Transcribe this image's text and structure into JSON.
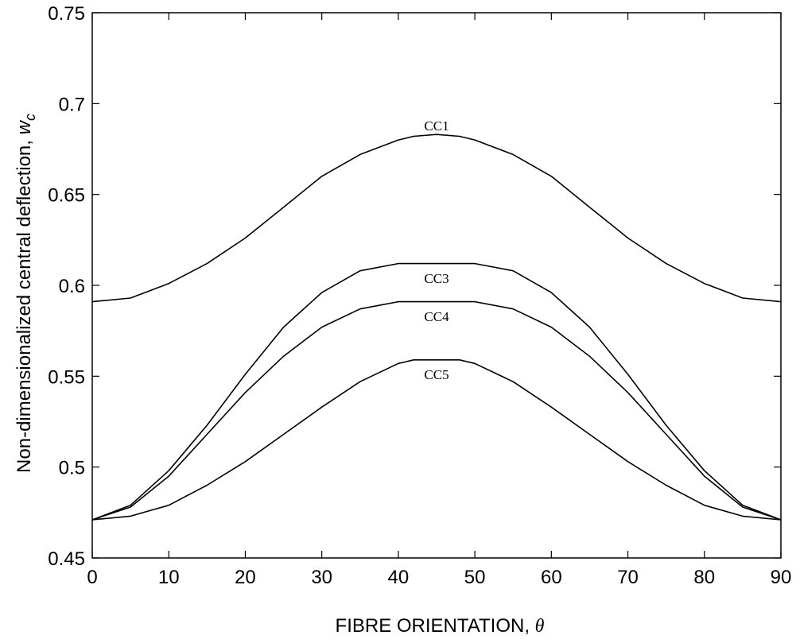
{
  "chart_data": {
    "type": "line",
    "xlabel": "FIBRE ORIENTATION, ",
    "xlabel_symbol": "θ",
    "ylabel": "Non-dimensionalized central deflection, ",
    "ylabel_symbol": "w",
    "ylabel_subscript": "c",
    "xlim": [
      0,
      90
    ],
    "ylim": [
      0.45,
      0.75
    ],
    "xticks": [
      0,
      10,
      20,
      30,
      40,
      50,
      60,
      70,
      80,
      90
    ],
    "xtick_labels": [
      "0",
      "10",
      "20",
      "30",
      "40",
      "50",
      "60",
      "70",
      "80",
      "90"
    ],
    "yticks": [
      0.45,
      0.5,
      0.55,
      0.6,
      0.65,
      0.7,
      0.75
    ],
    "ytick_labels": [
      "0.45",
      "0.5",
      "0.55",
      "0.6",
      "0.65",
      "0.7",
      "0.75"
    ],
    "grid": false,
    "x": [
      0,
      5,
      10,
      15,
      20,
      25,
      30,
      35,
      40,
      42,
      45,
      48,
      50,
      55,
      60,
      65,
      70,
      75,
      80,
      85,
      90
    ],
    "series": [
      {
        "name": "CC1",
        "label_at": [
          45,
          0.688
        ],
        "values": [
          0.591,
          0.593,
          0.601,
          0.612,
          0.626,
          0.643,
          0.66,
          0.672,
          0.68,
          0.682,
          0.683,
          0.682,
          0.68,
          0.672,
          0.66,
          0.643,
          0.626,
          0.612,
          0.601,
          0.593,
          0.591
        ]
      },
      {
        "name": "CC3",
        "label_at": [
          45,
          0.604
        ],
        "values": [
          0.471,
          0.479,
          0.498,
          0.523,
          0.551,
          0.577,
          0.596,
          0.608,
          0.612,
          0.612,
          0.612,
          0.612,
          0.612,
          0.608,
          0.596,
          0.577,
          0.551,
          0.523,
          0.498,
          0.479,
          0.471
        ]
      },
      {
        "name": "CC4",
        "label_at": [
          45,
          0.583
        ],
        "values": [
          0.471,
          0.478,
          0.495,
          0.518,
          0.541,
          0.561,
          0.577,
          0.587,
          0.591,
          0.591,
          0.591,
          0.591,
          0.591,
          0.587,
          0.577,
          0.561,
          0.541,
          0.518,
          0.495,
          0.478,
          0.471
        ]
      },
      {
        "name": "CC5",
        "label_at": [
          45,
          0.551
        ],
        "values": [
          0.471,
          0.473,
          0.479,
          0.49,
          0.503,
          0.518,
          0.533,
          0.547,
          0.557,
          0.559,
          0.559,
          0.559,
          0.557,
          0.547,
          0.533,
          0.518,
          0.503,
          0.49,
          0.479,
          0.473,
          0.471
        ]
      }
    ]
  }
}
